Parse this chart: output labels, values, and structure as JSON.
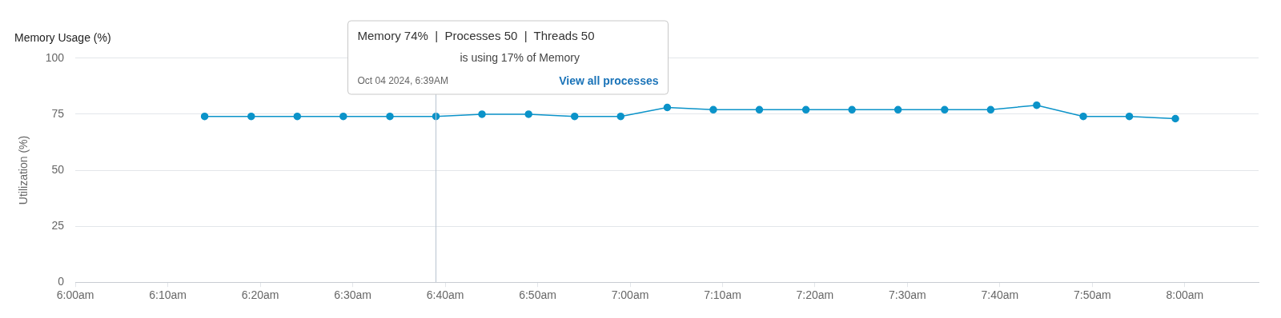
{
  "chart_data": {
    "type": "line",
    "title": "Memory Usage (%)",
    "ylabel": "Utilization (%)",
    "x": [
      6.233,
      6.317,
      6.4,
      6.483,
      6.567,
      6.65,
      6.733,
      6.817,
      6.9,
      6.983,
      7.067,
      7.15,
      7.233,
      7.317,
      7.4,
      7.483,
      7.567,
      7.65,
      7.733,
      7.817,
      7.9,
      7.983
    ],
    "series": [
      {
        "color": "#0b93c9",
        "values": [
          74,
          74,
          74,
          74,
          74,
          74,
          75,
          75,
          74,
          74,
          78,
          77,
          77,
          77,
          77,
          77,
          77,
          77,
          79,
          74,
          74,
          73
        ]
      }
    ],
    "xlim": [
      6,
      8.133
    ],
    "xticks": [
      {
        "value": 6,
        "label": "6:00am"
      },
      {
        "value": 6.1667,
        "label": "6:10am"
      },
      {
        "value": 6.3333,
        "label": "6:20am"
      },
      {
        "value": 6.5,
        "label": "6:30am"
      },
      {
        "value": 6.6667,
        "label": "6:40am"
      },
      {
        "value": 6.8333,
        "label": "6:50am"
      },
      {
        "value": 7,
        "label": "7:00am"
      },
      {
        "value": 7.1667,
        "label": "7:10am"
      },
      {
        "value": 7.3333,
        "label": "7:20am"
      },
      {
        "value": 7.5,
        "label": "7:30am"
      },
      {
        "value": 7.6667,
        "label": "7:40am"
      },
      {
        "value": 7.8333,
        "label": "7:50am"
      },
      {
        "value": 8,
        "label": "8:00am"
      }
    ],
    "ylim": [
      0,
      100
    ],
    "yticks": [
      0,
      25,
      50,
      75,
      100
    ],
    "grid": "y",
    "legend": false,
    "marker": "circle",
    "line_style": "solid",
    "ref_lines": [
      {
        "axis": "x",
        "value": 6.65,
        "color": "#b8c4d0"
      }
    ],
    "annotations": [
      "Memory 74%  |  Processes 50  |  Threads 50",
      "is using 17% of Memory",
      "Oct 04 2024, 6:39AM",
      "View all processes"
    ]
  }
}
